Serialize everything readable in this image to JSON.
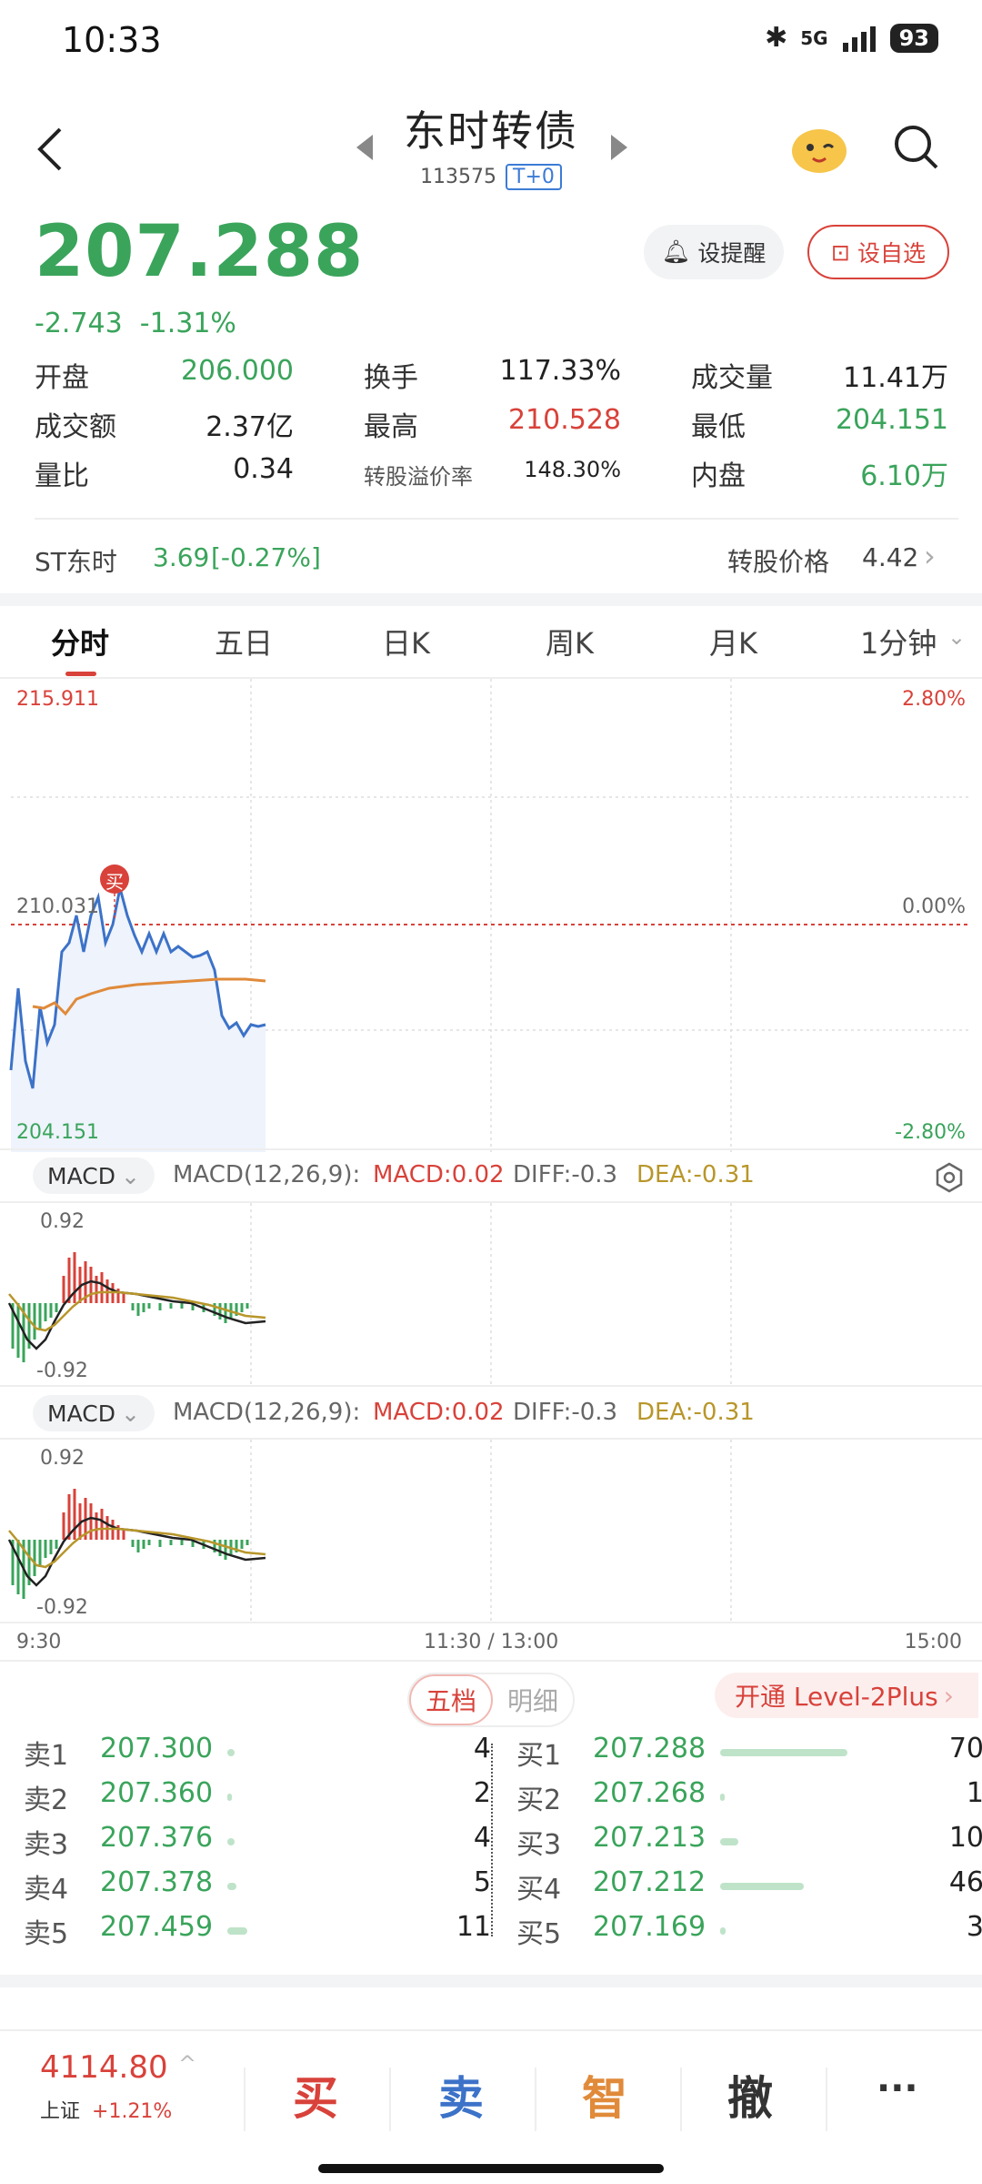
{
  "status": {
    "time": "10:33",
    "network": "5G",
    "battery": "93"
  },
  "header": {
    "title": "东时转债",
    "code": "113575",
    "tag": "T+0"
  },
  "quote": {
    "price": "207.288",
    "change": "-2.743",
    "change_pct": "-1.31%",
    "alert_label": "设提醒",
    "watch_label": "设自选"
  },
  "stats": [
    [
      {
        "label": "开盘",
        "value": "206.000",
        "color": "green"
      },
      {
        "label": "换手",
        "value": "117.33%",
        "color": "dark"
      },
      {
        "label": "成交量",
        "value": "11.41万",
        "color": "dark"
      }
    ],
    [
      {
        "label": "成交额",
        "value": "2.37亿",
        "color": "dark"
      },
      {
        "label": "最高",
        "value": "210.528",
        "color": "red"
      },
      {
        "label": "最低",
        "value": "204.151",
        "color": "green"
      }
    ],
    [
      {
        "label": "量比",
        "value": "0.34",
        "color": "dark"
      },
      {
        "label": "转股溢价率",
        "value": "148.30%",
        "color": "dark"
      },
      {
        "label": "内盘",
        "value": "6.10万",
        "color": "green"
      }
    ]
  ],
  "underlying": {
    "name": "ST东时",
    "price": "3.69",
    "change": "[-0.27%]",
    "conv_label": "转股价格",
    "conv_value": "4.42"
  },
  "tabs": [
    "分时",
    "五日",
    "日K",
    "周K",
    "月K",
    "1分钟"
  ],
  "chart": {
    "top_price": "215.911",
    "mid_price": "210.031",
    "low_price": "204.151",
    "top_pct": "2.80%",
    "mid_pct": "0.00%",
    "low_pct": "-2.80%",
    "buy_marker": "买",
    "time_labels": [
      "9:30",
      "11:30 / 13:00",
      "15:00"
    ]
  },
  "macd": {
    "pill": "MACD",
    "params": "MACD(12,26,9):",
    "macd": "MACD:0.02",
    "diff": "DIFF:-0.3",
    "dea": "DEA:-0.31",
    "top": "0.92",
    "bottom": "-0.92"
  },
  "orderbook": {
    "tab_active": "五档",
    "tab_inactive": "明细",
    "level2": "开通 Level-2Plus",
    "asks": [
      {
        "label": "卖1",
        "price": "207.300",
        "vol": "4"
      },
      {
        "label": "卖2",
        "price": "207.360",
        "vol": "2"
      },
      {
        "label": "卖3",
        "price": "207.376",
        "vol": "4"
      },
      {
        "label": "卖4",
        "price": "207.378",
        "vol": "5"
      },
      {
        "label": "卖5",
        "price": "207.459",
        "vol": "11"
      }
    ],
    "bids": [
      {
        "label": "买1",
        "price": "207.288",
        "vol": "70"
      },
      {
        "label": "买2",
        "price": "207.268",
        "vol": "1"
      },
      {
        "label": "买3",
        "price": "207.213",
        "vol": "10"
      },
      {
        "label": "买4",
        "price": "207.212",
        "vol": "46"
      },
      {
        "label": "买5",
        "price": "207.169",
        "vol": "3"
      }
    ]
  },
  "bottom": {
    "index_value": "4114.80",
    "index_name": "上证",
    "index_change": "+1.21%",
    "buy": "买",
    "sell": "卖",
    "smart": "智",
    "cancel": "撤",
    "more": "···"
  }
}
